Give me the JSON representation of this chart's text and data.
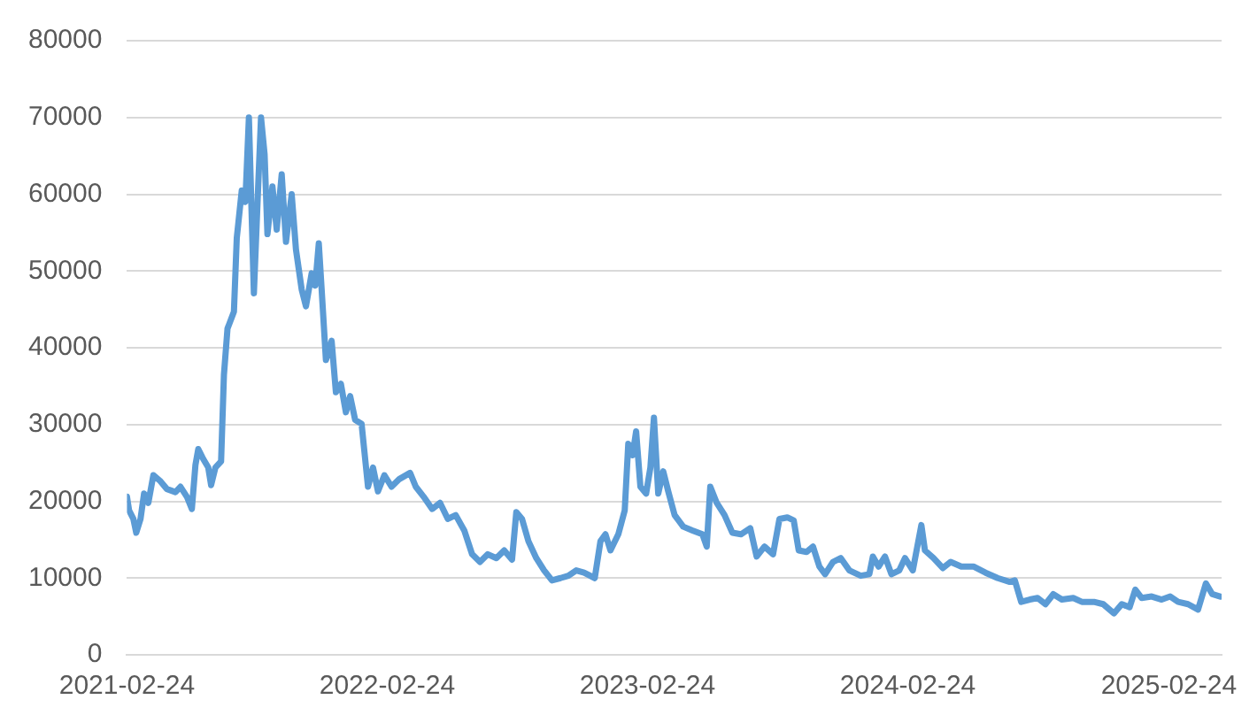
{
  "chart_data": {
    "type": "line",
    "x": [
      "2021-02-24",
      "2021-02-27",
      "2021-03-05",
      "2021-03-09",
      "2021-03-15",
      "2021-03-20",
      "2021-03-26",
      "2021-04-02",
      "2021-04-11",
      "2021-04-21",
      "2021-05-03",
      "2021-05-10",
      "2021-05-19",
      "2021-05-26",
      "2021-05-31",
      "2021-06-04",
      "2021-06-11",
      "2021-06-18",
      "2021-06-22",
      "2021-06-28",
      "2021-07-06",
      "2021-07-10",
      "2021-07-15",
      "2021-07-24",
      "2021-07-28",
      "2021-08-04",
      "2021-08-09",
      "2021-08-14",
      "2021-08-21",
      "2021-08-27",
      "2021-08-31",
      "2021-09-05",
      "2021-09-09",
      "2021-09-16",
      "2021-09-22",
      "2021-09-29",
      "2021-10-05",
      "2021-10-13",
      "2021-10-19",
      "2021-10-27",
      "2021-11-02",
      "2021-11-10",
      "2021-11-15",
      "2021-11-20",
      "2021-11-24",
      "2021-11-30",
      "2021-12-08",
      "2021-12-14",
      "2021-12-21",
      "2021-12-28",
      "2022-01-03",
      "2022-01-10",
      "2022-01-19",
      "2022-01-28",
      "2022-02-04",
      "2022-02-11",
      "2022-02-20",
      "2022-03-02",
      "2022-03-13",
      "2022-03-28",
      "2022-04-05",
      "2022-04-16",
      "2022-04-28",
      "2022-05-09",
      "2022-05-20",
      "2022-05-31",
      "2022-06-12",
      "2022-06-23",
      "2022-07-04",
      "2022-07-15",
      "2022-07-27",
      "2022-08-07",
      "2022-08-18",
      "2022-08-24",
      "2022-09-01",
      "2022-09-10",
      "2022-09-21",
      "2022-10-02",
      "2022-10-13",
      "2022-10-25",
      "2022-11-05",
      "2022-11-16",
      "2022-11-27",
      "2022-12-12",
      "2022-12-20",
      "2022-12-27",
      "2023-01-03",
      "2023-01-14",
      "2023-01-23",
      "2023-01-28",
      "2023-02-03",
      "2023-02-08",
      "2023-02-14",
      "2023-02-22",
      "2023-02-28",
      "2023-03-05",
      "2023-03-11",
      "2023-03-18",
      "2023-03-25",
      "2023-04-03",
      "2023-04-15",
      "2023-04-28",
      "2023-05-12",
      "2023-05-18",
      "2023-05-23",
      "2023-06-01",
      "2023-06-12",
      "2023-06-23",
      "2023-07-05",
      "2023-07-18",
      "2023-07-27",
      "2023-08-07",
      "2023-08-19",
      "2023-08-28",
      "2023-09-08",
      "2023-09-17",
      "2023-09-24",
      "2023-10-05",
      "2023-10-14",
      "2023-10-23",
      "2023-10-31",
      "2023-11-11",
      "2023-11-22",
      "2023-12-04",
      "2023-12-20",
      "2024-01-01",
      "2024-01-06",
      "2024-01-14",
      "2024-01-23",
      "2024-02-01",
      "2024-02-12",
      "2024-02-20",
      "2024-03-02",
      "2024-03-14",
      "2024-03-19",
      "2024-03-31",
      "2024-04-13",
      "2024-04-24",
      "2024-05-09",
      "2024-05-26",
      "2024-06-12",
      "2024-06-29",
      "2024-07-16",
      "2024-07-23",
      "2024-08-01",
      "2024-08-13",
      "2024-08-24",
      "2024-09-04",
      "2024-09-15",
      "2024-09-27",
      "2024-10-13",
      "2024-10-25",
      "2024-11-11",
      "2024-11-24",
      "2024-12-09",
      "2024-12-20",
      "2024-12-31",
      "2025-01-08",
      "2025-01-17",
      "2025-01-31",
      "2025-02-14",
      "2025-02-26",
      "2025-03-09",
      "2025-03-23",
      "2025-04-06",
      "2025-04-17",
      "2025-04-26",
      "2025-05-07"
    ],
    "series": [
      {
        "color": "#5b9bd5",
        "values": [
          20600,
          18800,
          17700,
          15900,
          17700,
          21000,
          19800,
          23400,
          22700,
          21600,
          21200,
          21900,
          20600,
          19000,
          24700,
          26800,
          25500,
          24400,
          22100,
          24400,
          25200,
          36500,
          42500,
          44700,
          54300,
          60500,
          59000,
          70000,
          47100,
          61000,
          70000,
          65200,
          54800,
          61000,
          55400,
          62600,
          53800,
          60000,
          52800,
          47600,
          45400,
          49700,
          48100,
          53600,
          47600,
          38400,
          40900,
          34200,
          35300,
          31600,
          33700,
          30600,
          30100,
          21900,
          24400,
          21300,
          23400,
          21900,
          22900,
          23700,
          21900,
          20600,
          19000,
          19800,
          17700,
          18200,
          16200,
          13100,
          12100,
          13100,
          12600,
          13600,
          12400,
          18600,
          17700,
          14800,
          12600,
          11000,
          9700,
          10000,
          10300,
          11000,
          10700,
          10000,
          14800,
          15700,
          13600,
          15700,
          18800,
          27500,
          26000,
          29100,
          21900,
          21000,
          24400,
          30900,
          21000,
          23900,
          21300,
          18200,
          16700,
          16200,
          15700,
          14100,
          21900,
          19800,
          18200,
          15900,
          15700,
          16500,
          12800,
          14100,
          13100,
          17700,
          17900,
          17500,
          13600,
          13400,
          14100,
          11500,
          10500,
          12100,
          12600,
          11000,
          10300,
          10500,
          12800,
          11500,
          12800,
          10500,
          11000,
          12600,
          11000,
          16900,
          13600,
          12600,
          11300,
          12100,
          11500,
          11500,
          10700,
          10000,
          9500,
          9700,
          6900,
          7200,
          7400,
          6600,
          7900,
          7200,
          7400,
          6900,
          6900,
          6600,
          5400,
          6600,
          6200,
          8500,
          7400,
          7600,
          7200,
          7600,
          6900,
          6600,
          5900,
          9300,
          7900,
          7600
        ]
      }
    ],
    "xlim": [
      "2021-02-24",
      "2025-05-09"
    ],
    "xticks": [
      {
        "value": "2021-02-24",
        "label": "2021-02-24"
      },
      {
        "value": "2022-02-24",
        "label": "2022-02-24"
      },
      {
        "value": "2023-02-24",
        "label": "2023-02-24"
      },
      {
        "value": "2024-02-24",
        "label": "2024-02-24"
      },
      {
        "value": "2025-02-24",
        "label": "2025-02-24"
      }
    ],
    "ylim": [
      0,
      80000
    ],
    "yticks": [
      0,
      10000,
      20000,
      30000,
      40000,
      50000,
      60000,
      70000,
      80000
    ],
    "grid": "y",
    "legend": false,
    "marker": "none",
    "line_style": "solid"
  }
}
